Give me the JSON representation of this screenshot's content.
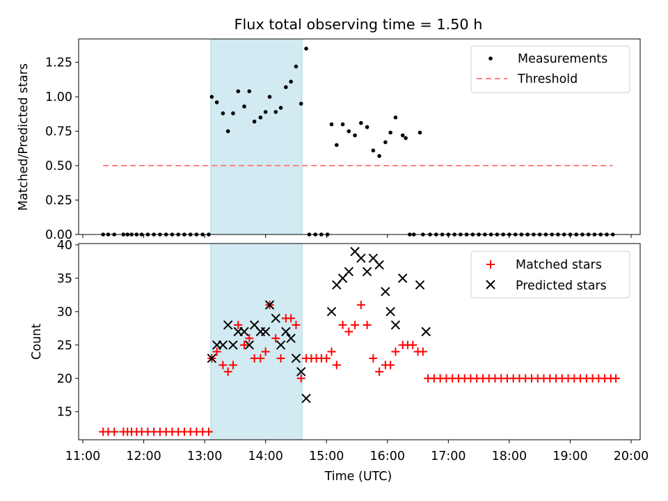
{
  "title": "Flux total observing time = 1.50 h",
  "chart_data": [
    {
      "type": "scatter",
      "ylabel": "Matched/Predicted stars",
      "ylim": [
        0,
        1.42
      ],
      "yticks": [
        "0.00",
        "0.25",
        "0.50",
        "0.75",
        "1.00",
        "1.25"
      ],
      "highlight_span": {
        "x_start": "13:06",
        "x_end": "14:36"
      },
      "legend": {
        "position": "upper right",
        "entries": [
          "Measurements",
          "Threshold"
        ]
      },
      "colors": {
        "measurements": "#000000",
        "threshold": "#ff7f7f",
        "span": "#add8e6"
      },
      "series": [
        {
          "name": "Measurements",
          "points": [
            [
              "11:20",
              0
            ],
            [
              "11:25",
              0
            ],
            [
              "11:31",
              0
            ],
            [
              "11:40",
              0
            ],
            [
              "11:44",
              0
            ],
            [
              "11:48",
              0
            ],
            [
              "11:53",
              0
            ],
            [
              "11:58",
              0
            ],
            [
              "12:04",
              0
            ],
            [
              "12:10",
              0
            ],
            [
              "12:16",
              0
            ],
            [
              "12:22",
              0
            ],
            [
              "12:28",
              0
            ],
            [
              "12:34",
              0
            ],
            [
              "12:40",
              0
            ],
            [
              "12:46",
              0
            ],
            [
              "12:52",
              0
            ],
            [
              "12:58",
              0
            ],
            [
              "13:04",
              0
            ],
            [
              "13:07",
              1.0
            ],
            [
              "13:12",
              0.96
            ],
            [
              "13:18",
              0.88
            ],
            [
              "13:23",
              0.75
            ],
            [
              "13:28",
              0.88
            ],
            [
              "13:33",
              1.04
            ],
            [
              "13:39",
              0.93
            ],
            [
              "13:44",
              1.04
            ],
            [
              "13:49",
              0.82
            ],
            [
              "13:55",
              0.85
            ],
            [
              "14:00",
              0.89
            ],
            [
              "14:04",
              1.0
            ],
            [
              "14:10",
              0.89
            ],
            [
              "14:15",
              0.92
            ],
            [
              "14:20",
              1.07
            ],
            [
              "14:25",
              1.11
            ],
            [
              "14:30",
              1.22
            ],
            [
              "14:35",
              0.95
            ],
            [
              "14:40",
              1.35
            ],
            [
              "14:43",
              0
            ],
            [
              "14:49",
              0
            ],
            [
              "14:55",
              0
            ],
            [
              "15:01",
              0
            ],
            [
              "15:05",
              0.8
            ],
            [
              "15:10",
              0.65
            ],
            [
              "15:16",
              0.8
            ],
            [
              "15:22",
              0.75
            ],
            [
              "15:28",
              0.72
            ],
            [
              "15:34",
              0.81
            ],
            [
              "15:40",
              0.78
            ],
            [
              "15:46",
              0.61
            ],
            [
              "15:52",
              0.57
            ],
            [
              "15:58",
              0.67
            ],
            [
              "16:03",
              0.74
            ],
            [
              "16:08",
              0.85
            ],
            [
              "16:15",
              0.72
            ],
            [
              "16:22",
              0
            ],
            [
              "16:26",
              0
            ],
            [
              "16:35",
              0
            ],
            [
              "16:42",
              0
            ],
            [
              "16:48",
              0
            ],
            [
              "16:54",
              0
            ],
            [
              "17:00",
              0
            ],
            [
              "17:06",
              0
            ],
            [
              "17:12",
              0
            ],
            [
              "17:18",
              0
            ],
            [
              "17:24",
              0
            ],
            [
              "17:30",
              0
            ],
            [
              "17:36",
              0
            ],
            [
              "17:42",
              0
            ],
            [
              "17:48",
              0
            ],
            [
              "17:54",
              0
            ],
            [
              "18:00",
              0
            ],
            [
              "18:06",
              0
            ],
            [
              "18:12",
              0
            ],
            [
              "18:18",
              0
            ],
            [
              "18:24",
              0
            ],
            [
              "18:30",
              0
            ],
            [
              "18:36",
              0
            ],
            [
              "18:42",
              0
            ],
            [
              "18:48",
              0
            ],
            [
              "18:54",
              0
            ],
            [
              "19:00",
              0
            ],
            [
              "19:06",
              0
            ],
            [
              "19:12",
              0
            ],
            [
              "19:18",
              0
            ],
            [
              "19:24",
              0
            ],
            [
              "19:30",
              0
            ],
            [
              "19:36",
              0
            ],
            [
              "19:42",
              0
            ],
            [
              "16:18",
              0.7
            ],
            [
              "16:32",
              0.74
            ]
          ]
        },
        {
          "name": "Threshold",
          "style": "dashed",
          "points": [
            [
              "11:20",
              0.5
            ],
            [
              "19:42",
              0.5
            ]
          ]
        }
      ]
    },
    {
      "type": "scatter",
      "xlabel": "Time (UTC)",
      "ylabel": "Count",
      "ylim": [
        10.8,
        40.2
      ],
      "yticks": [
        "15",
        "20",
        "25",
        "30",
        "35",
        "40"
      ],
      "xticks": [
        "11:00",
        "12:00",
        "13:00",
        "14:00",
        "15:00",
        "16:00",
        "17:00",
        "18:00",
        "19:00",
        "20:00"
      ],
      "highlight_span": {
        "x_start": "13:06",
        "x_end": "14:36"
      },
      "legend": {
        "position": "upper right",
        "entries": [
          "Matched stars",
          "Predicted stars"
        ]
      },
      "colors": {
        "matched": "#ff0000",
        "predicted": "#000000",
        "span": "#add8e6"
      },
      "series": [
        {
          "name": "Matched stars",
          "marker": "plus",
          "points": [
            [
              "11:20",
              12
            ],
            [
              "11:25",
              12
            ],
            [
              "11:31",
              12
            ],
            [
              "11:40",
              12
            ],
            [
              "11:44",
              12
            ],
            [
              "11:48",
              12
            ],
            [
              "11:53",
              12
            ],
            [
              "11:58",
              12
            ],
            [
              "12:04",
              12
            ],
            [
              "12:10",
              12
            ],
            [
              "12:16",
              12
            ],
            [
              "12:22",
              12
            ],
            [
              "12:28",
              12
            ],
            [
              "12:34",
              12
            ],
            [
              "12:40",
              12
            ],
            [
              "12:46",
              12
            ],
            [
              "12:52",
              12
            ],
            [
              "12:58",
              12
            ],
            [
              "13:04",
              12
            ],
            [
              "13:07",
              23
            ],
            [
              "13:12",
              24
            ],
            [
              "13:18",
              22
            ],
            [
              "13:23",
              21
            ],
            [
              "13:28",
              22
            ],
            [
              "13:33",
              28
            ],
            [
              "13:39",
              25
            ],
            [
              "13:44",
              26
            ],
            [
              "13:49",
              23
            ],
            [
              "13:55",
              23
            ],
            [
              "14:00",
              24
            ],
            [
              "14:04",
              31
            ],
            [
              "14:10",
              26
            ],
            [
              "14:15",
              23
            ],
            [
              "14:20",
              29
            ],
            [
              "14:25",
              29
            ],
            [
              "14:30",
              28
            ],
            [
              "14:35",
              20
            ],
            [
              "14:40",
              23
            ],
            [
              "14:45",
              23
            ],
            [
              "14:50",
              23
            ],
            [
              "14:55",
              23
            ],
            [
              "15:00",
              23
            ],
            [
              "15:05",
              24
            ],
            [
              "15:10",
              22
            ],
            [
              "15:16",
              28
            ],
            [
              "15:22",
              27
            ],
            [
              "15:28",
              28
            ],
            [
              "15:34",
              31
            ],
            [
              "15:40",
              28
            ],
            [
              "15:46",
              23
            ],
            [
              "15:52",
              21
            ],
            [
              "15:58",
              22
            ],
            [
              "16:03",
              22
            ],
            [
              "16:08",
              24
            ],
            [
              "16:15",
              25
            ],
            [
              "16:20",
              25
            ],
            [
              "16:25",
              25
            ],
            [
              "16:30",
              24
            ],
            [
              "16:35",
              24
            ],
            [
              "16:40",
              20
            ],
            [
              "16:46",
              20
            ],
            [
              "16:52",
              20
            ],
            [
              "16:58",
              20
            ],
            [
              "17:04",
              20
            ],
            [
              "17:10",
              20
            ],
            [
              "17:16",
              20
            ],
            [
              "17:22",
              20
            ],
            [
              "17:28",
              20
            ],
            [
              "17:34",
              20
            ],
            [
              "17:40",
              20
            ],
            [
              "17:46",
              20
            ],
            [
              "17:52",
              20
            ],
            [
              "17:58",
              20
            ],
            [
              "18:04",
              20
            ],
            [
              "18:10",
              20
            ],
            [
              "18:16",
              20
            ],
            [
              "18:22",
              20
            ],
            [
              "18:28",
              20
            ],
            [
              "18:34",
              20
            ],
            [
              "18:40",
              20
            ],
            [
              "18:46",
              20
            ],
            [
              "18:52",
              20
            ],
            [
              "18:58",
              20
            ],
            [
              "19:04",
              20
            ],
            [
              "19:10",
              20
            ],
            [
              "19:16",
              20
            ],
            [
              "19:22",
              20
            ],
            [
              "19:28",
              20
            ],
            [
              "19:34",
              20
            ],
            [
              "19:40",
              20
            ],
            [
              "19:45",
              20
            ]
          ]
        },
        {
          "name": "Predicted stars",
          "marker": "x",
          "points": [
            [
              "13:07",
              23
            ],
            [
              "13:12",
              25
            ],
            [
              "13:18",
              25
            ],
            [
              "13:23",
              28
            ],
            [
              "13:28",
              25
            ],
            [
              "13:33",
              27
            ],
            [
              "13:39",
              27
            ],
            [
              "13:44",
              25
            ],
            [
              "13:49",
              28
            ],
            [
              "13:55",
              27
            ],
            [
              "14:00",
              27
            ],
            [
              "14:04",
              31
            ],
            [
              "14:10",
              29
            ],
            [
              "14:15",
              25
            ],
            [
              "14:20",
              27
            ],
            [
              "14:25",
              26
            ],
            [
              "14:30",
              23
            ],
            [
              "14:35",
              21
            ],
            [
              "14:40",
              17
            ],
            [
              "15:05",
              30
            ],
            [
              "15:10",
              34
            ],
            [
              "15:16",
              35
            ],
            [
              "15:22",
              36
            ],
            [
              "15:28",
              39
            ],
            [
              "15:34",
              38
            ],
            [
              "15:40",
              36
            ],
            [
              "15:46",
              38
            ],
            [
              "15:52",
              37
            ],
            [
              "15:58",
              33
            ],
            [
              "16:03",
              30
            ],
            [
              "16:08",
              28
            ],
            [
              "16:15",
              35
            ],
            [
              "16:32",
              34
            ],
            [
              "16:38",
              27
            ]
          ]
        }
      ]
    }
  ]
}
